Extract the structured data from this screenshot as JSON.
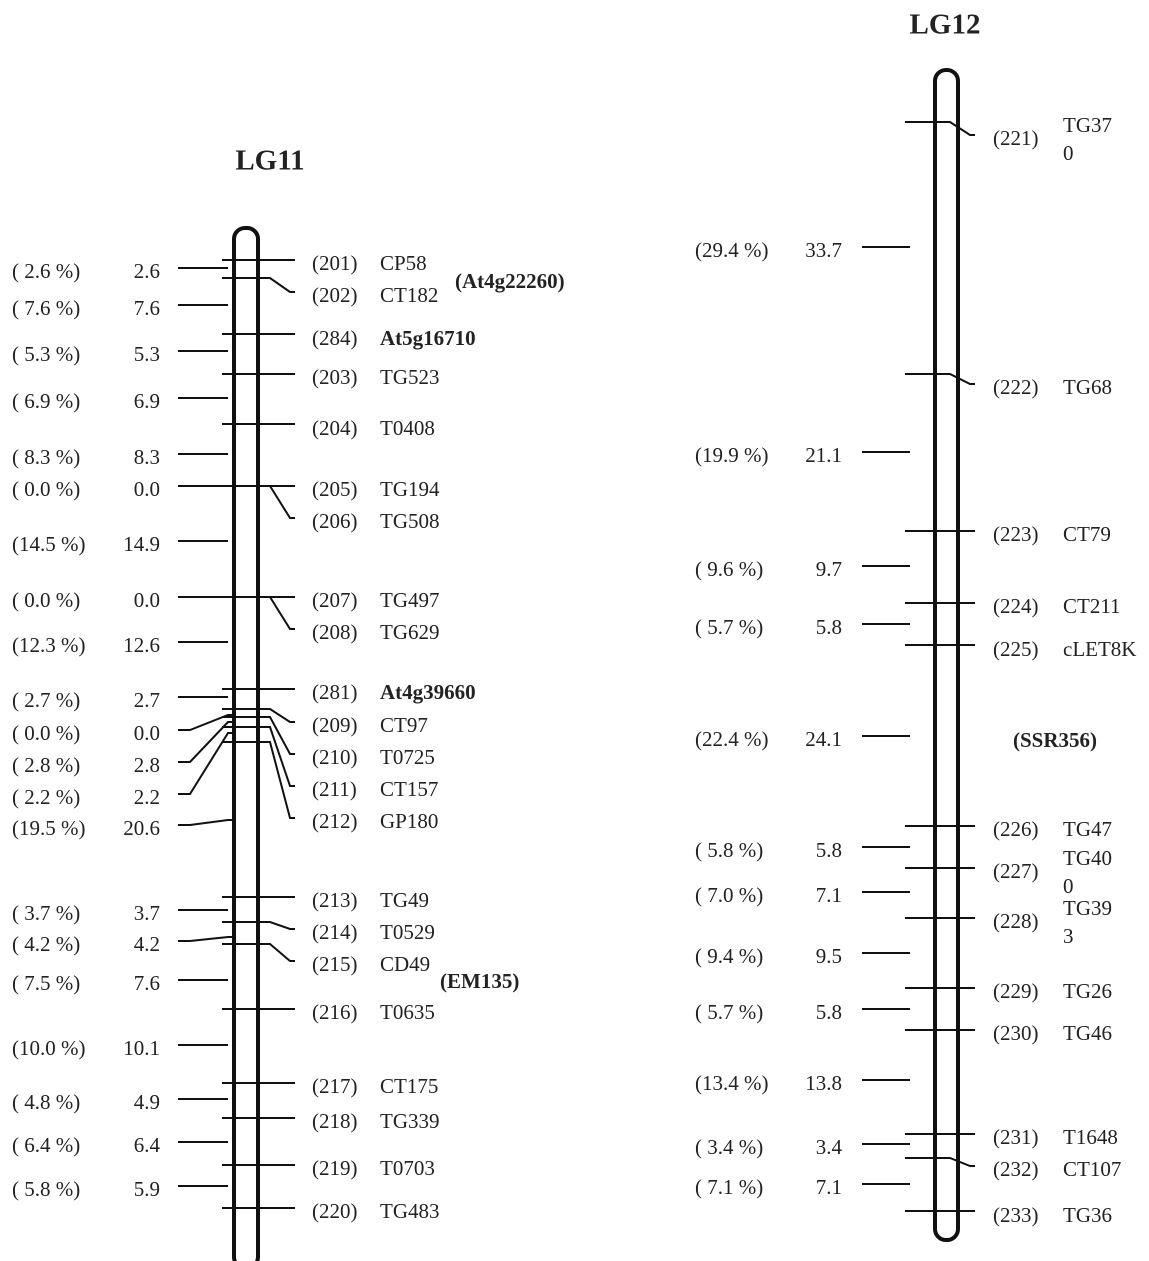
{
  "groups": [
    {
      "title": "LG11",
      "intervals": [
        {
          "percent": "( 2.6 %)",
          "distance": "2.6"
        },
        {
          "percent": "( 7.6 %)",
          "distance": "7.6"
        },
        {
          "percent": "( 5.3 %)",
          "distance": "5.3"
        },
        {
          "percent": "( 6.9 %)",
          "distance": "6.9"
        },
        {
          "percent": "( 8.3 %)",
          "distance": "8.3"
        },
        {
          "percent": "( 0.0 %)",
          "distance": "0.0"
        },
        {
          "percent": "(14.5 %)",
          "distance": "14.9"
        },
        {
          "percent": "( 0.0 %)",
          "distance": "0.0"
        },
        {
          "percent": "(12.3 %)",
          "distance": "12.6"
        },
        {
          "percent": "( 2.7 %)",
          "distance": "2.7"
        },
        {
          "percent": "( 0.0 %)",
          "distance": "0.0"
        },
        {
          "percent": "( 2.8 %)",
          "distance": "2.8"
        },
        {
          "percent": "( 2.2 %)",
          "distance": "2.2"
        },
        {
          "percent": "(19.5 %)",
          "distance": "20.6"
        },
        {
          "percent": "( 3.7 %)",
          "distance": "3.7"
        },
        {
          "percent": "( 4.2 %)",
          "distance": "4.2"
        },
        {
          "percent": "( 7.5 %)",
          "distance": "7.6"
        },
        {
          "percent": "(10.0 %)",
          "distance": "10.1"
        },
        {
          "percent": "( 4.8 %)",
          "distance": "4.9"
        },
        {
          "percent": "( 6.4 %)",
          "distance": "6.4"
        },
        {
          "percent": "( 5.8 %)",
          "distance": "5.9"
        }
      ],
      "markers": [
        {
          "index": "(201)",
          "name": [
            "CP58"
          ]
        },
        {
          "index": "(202)",
          "name": [
            "CT182"
          ]
        },
        {
          "index": "(284)",
          "name": [
            "At5g16710"
          ]
        },
        {
          "index": "(203)",
          "name": [
            "TG523"
          ]
        },
        {
          "index": "(204)",
          "name": [
            "T0408"
          ]
        },
        {
          "index": "(205)",
          "name": [
            "TG194"
          ]
        },
        {
          "index": "(206)",
          "name": [
            "TG508"
          ]
        },
        {
          "index": "(207)",
          "name": [
            "TG497"
          ]
        },
        {
          "index": "(208)",
          "name": [
            "TG629"
          ]
        },
        {
          "index": "(281)",
          "name": [
            "At4g39660"
          ]
        },
        {
          "index": "(209)",
          "name": [
            "CT97"
          ]
        },
        {
          "index": "(210)",
          "name": [
            "T0725"
          ]
        },
        {
          "index": "(211)",
          "name": [
            "CT157"
          ]
        },
        {
          "index": "(212)",
          "name": [
            "GP180"
          ]
        },
        {
          "index": "(213)",
          "name": [
            "TG49"
          ]
        },
        {
          "index": "(214)",
          "name": [
            "T0529"
          ]
        },
        {
          "index": "(215)",
          "name": [
            "CD49"
          ]
        },
        {
          "index": "(216)",
          "name": [
            "T0635"
          ]
        },
        {
          "index": "(217)",
          "name": [
            "CT175"
          ]
        },
        {
          "index": "(218)",
          "name": [
            "TG339"
          ]
        },
        {
          "index": "(219)",
          "name": [
            "T0703"
          ]
        },
        {
          "index": "(220)",
          "name": [
            "TG483"
          ]
        }
      ],
      "annotations": [
        "(At4g22260)",
        "(EM135)"
      ]
    },
    {
      "title": "LG12",
      "intervals": [
        {
          "percent": "(29.4 %)",
          "distance": "33.7"
        },
        {
          "percent": "(19.9 %)",
          "distance": "21.1"
        },
        {
          "percent": "( 9.6 %)",
          "distance": "9.7"
        },
        {
          "percent": "( 5.7 %)",
          "distance": "5.8"
        },
        {
          "percent": "(22.4 %)",
          "distance": "24.1"
        },
        {
          "percent": "( 5.8 %)",
          "distance": "5.8"
        },
        {
          "percent": "( 7.0 %)",
          "distance": "7.1"
        },
        {
          "percent": "( 9.4 %)",
          "distance": "9.5"
        },
        {
          "percent": "( 5.7 %)",
          "distance": "5.8"
        },
        {
          "percent": "(13.4 %)",
          "distance": "13.8"
        },
        {
          "percent": "( 3.4 %)",
          "distance": "3.4"
        },
        {
          "percent": "( 7.1 %)",
          "distance": "7.1"
        }
      ],
      "markers": [
        {
          "index": "(221)",
          "name": [
            "TG37",
            "0"
          ]
        },
        {
          "index": "(222)",
          "name": [
            "TG68"
          ]
        },
        {
          "index": "(223)",
          "name": [
            "CT79"
          ]
        },
        {
          "index": "(224)",
          "name": [
            "CT211"
          ]
        },
        {
          "index": "(225)",
          "name": [
            "cLET8K"
          ]
        },
        {
          "index": "(226)",
          "name": [
            "TG47"
          ]
        },
        {
          "index": "(227)",
          "name": [
            "TG40",
            "0"
          ]
        },
        {
          "index": "(228)",
          "name": [
            "TG39",
            "3"
          ]
        },
        {
          "index": "(229)",
          "name": [
            "TG26"
          ]
        },
        {
          "index": "(230)",
          "name": [
            "TG46"
          ]
        },
        {
          "index": "(231)",
          "name": [
            "T1648"
          ]
        },
        {
          "index": "(232)",
          "name": [
            "CT107"
          ]
        },
        {
          "index": "(233)",
          "name": [
            "TG36"
          ]
        }
      ],
      "annotations": [
        "(SSR356)"
      ]
    }
  ]
}
